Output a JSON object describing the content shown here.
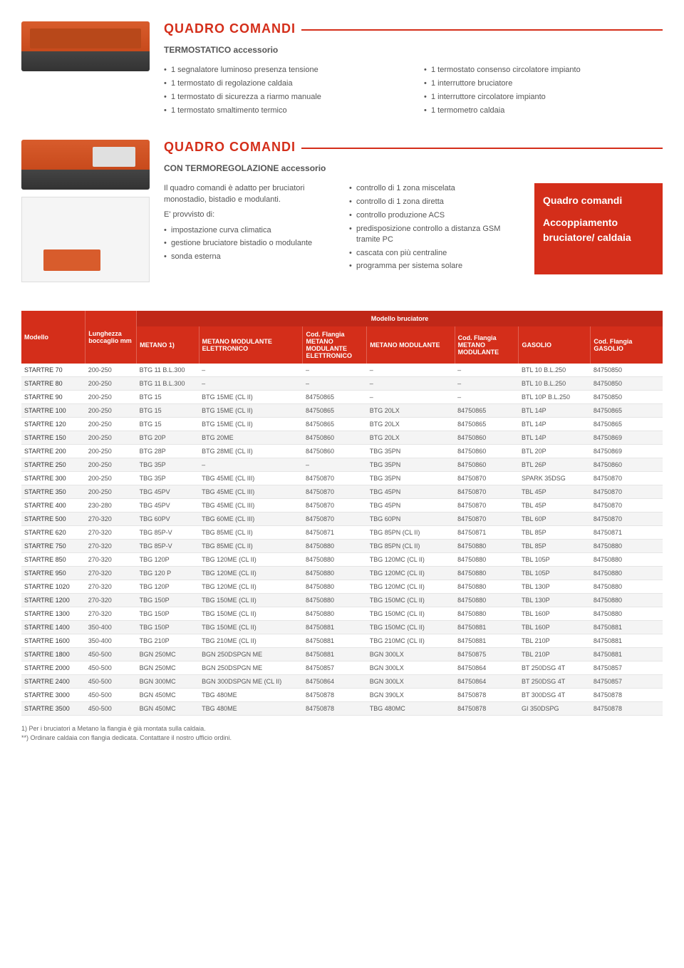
{
  "section1": {
    "title": "QUADRO COMANDI",
    "subtitle": "TERMOSTATICO accessorio",
    "left": [
      "1 segnalatore luminoso presenza tensione",
      "1 termostato di regolazione caldaia",
      "1 termostato di sicurezza a riarmo manuale",
      "1 termostato smaltimento termico"
    ],
    "right": [
      "1 termostato consenso circolatore impianto",
      "1 interruttore bruciatore",
      "1 interruttore circolatore impianto",
      "1 termometro caldaia"
    ]
  },
  "section2": {
    "title": "QUADRO COMANDI",
    "subtitle": "CON TERMOREGOLAZIONE accessorio",
    "desc1": "Il quadro comandi è adatto per bruciatori monostadio, bistadio e modulanti.",
    "desc2": "E' provvisto di:",
    "left": [
      "impostazione curva climatica",
      "gestione bruciatore bistadio o modulante",
      "sonda esterna"
    ],
    "right": [
      "controllo di 1 zona miscelata",
      "controllo di 1 zona diretta",
      "controllo produzione ACS",
      "predisposizione controllo a distanza GSM tramite PC",
      "cascata con più centraline",
      "programma per sistema solare"
    ],
    "sidebox": {
      "l1": "Quadro comandi",
      "l2": "Accoppiamento bruciatore/ caldaia"
    }
  },
  "table": {
    "group_header": "Modello bruciatore",
    "headers": [
      "Modello",
      "Lunghezza boccaglio mm",
      "METANO 1)",
      "METANO MODULANTE ELETTRONICO",
      "Cod. Flangia METANO MODULANTE ELETTRONICO",
      "METANO MODULANTE",
      "Cod. Flangia METANO MODULANTE",
      "GASOLIO",
      "Cod. Flangia GASOLIO"
    ],
    "rows": [
      [
        "STARTRE 70",
        "200-250",
        "BTG 11 B.L.300",
        "–",
        "–",
        "–",
        "–",
        "BTL 10 B.L.250",
        "84750850"
      ],
      [
        "STARTRE 80",
        "200-250",
        "BTG 11 B.L.300",
        "–",
        "–",
        "–",
        "–",
        "BTL 10 B.L.250",
        "84750850"
      ],
      [
        "STARTRE 90",
        "200-250",
        "BTG 15",
        "BTG 15ME (CL II)",
        "84750865",
        "–",
        "–",
        "BTL 10P B.L.250",
        "84750850"
      ],
      [
        "STARTRE 100",
        "200-250",
        "BTG 15",
        "BTG 15ME (CL II)",
        "84750865",
        "BTG 20LX",
        "84750865",
        "BTL 14P",
        "84750865"
      ],
      [
        "STARTRE 120",
        "200-250",
        "BTG 15",
        "BTG 15ME (CL II)",
        "84750865",
        "BTG 20LX",
        "84750865",
        "BTL 14P",
        "84750865"
      ],
      [
        "STARTRE 150",
        "200-250",
        "BTG 20P",
        "BTG 20ME",
        "84750860",
        "BTG 20LX",
        "84750860",
        "BTL 14P",
        "84750869"
      ],
      [
        "STARTRE 200",
        "200-250",
        "BTG 28P",
        "BTG 28ME (CL II)",
        "84750860",
        "TBG 35PN",
        "84750860",
        "BTL 20P",
        "84750869"
      ],
      [
        "STARTRE 250",
        "200-250",
        "TBG 35P",
        "–",
        "–",
        "TBG 35PN",
        "84750860",
        "BTL 26P",
        "84750860"
      ],
      [
        "STARTRE 300",
        "200-250",
        "TBG 35P",
        "TBG 45ME  (CL III)",
        "84750870",
        "TBG 35PN",
        "84750870",
        "SPARK 35DSG",
        "84750870"
      ],
      [
        "STARTRE 350",
        "200-250",
        "TBG 45PV",
        "TBG 45ME  (CL III)",
        "84750870",
        "TBG 45PN",
        "84750870",
        "TBL 45P",
        "84750870"
      ],
      [
        "STARTRE 400",
        "230-280",
        "TBG 45PV",
        "TBG 45ME  (CL III)",
        "84750870",
        "TBG 45PN",
        "84750870",
        "TBL 45P",
        "84750870"
      ],
      [
        "STARTRE 500",
        "270-320",
        "TBG 60PV",
        "TBG 60ME  (CL III)",
        "84750870",
        "TBG 60PN",
        "84750870",
        "TBL 60P",
        "84750870"
      ],
      [
        "STARTRE 620",
        "270-320",
        "TBG 85P-V",
        "TBG 85ME  (CL II)",
        "84750871",
        "TBG 85PN (CL II)",
        "84750871",
        "TBL 85P",
        "84750871"
      ],
      [
        "STARTRE 750",
        "270-320",
        "TBG 85P-V",
        "TBG 85ME  (CL II)",
        "84750880",
        "TBG 85PN (CL II)",
        "84750880",
        "TBL 85P",
        "84750880"
      ],
      [
        "STARTRE 850",
        "270-320",
        "TBG 120P",
        "TBG 120ME (CL II)",
        "84750880",
        "TBG 120MC  (CL II)",
        "84750880",
        "TBL 105P",
        "84750880"
      ],
      [
        "STARTRE 950",
        "270-320",
        "TBG 120 P",
        "TBG 120ME (CL II)",
        "84750880",
        "TBG 120MC  (CL II)",
        "84750880",
        "TBL 105P",
        "84750880"
      ],
      [
        "STARTRE 1020",
        "270-320",
        "TBG 120P",
        "TBG 120ME (CL II)",
        "84750880",
        "TBG 120MC  (CL II)",
        "84750880",
        "TBL 130P",
        "84750880"
      ],
      [
        "STARTRE 1200",
        "270-320",
        "TBG 150P",
        "TBG 150ME (CL II)",
        "84750880",
        "TBG 150MC  (CL II)",
        "84750880",
        "TBL 130P",
        "84750880"
      ],
      [
        "STARTRE 1300",
        "270-320",
        "TBG 150P",
        "TBG 150ME (CL II)",
        "84750880",
        "TBG 150MC  (CL II)",
        "84750880",
        "TBL 160P",
        "84750880"
      ],
      [
        "STARTRE 1400",
        "350-400",
        "TBG 150P",
        "TBG 150ME (CL II)",
        "84750881",
        "TBG 150MC  (CL II)",
        "84750881",
        "TBL 160P",
        "84750881"
      ],
      [
        "STARTRE 1600",
        "350-400",
        "TBG 210P",
        "TBG 210ME (CL II)",
        "84750881",
        "TBG 210MC  (CL II)",
        "84750881",
        "TBL 210P",
        "84750881"
      ],
      [
        "STARTRE 1800",
        "450-500",
        "BGN 250MC",
        "BGN 250DSPGN ME",
        "84750881",
        "BGN 300LX",
        "84750875",
        "TBL 210P",
        "84750881"
      ],
      [
        "STARTRE 2000",
        "450-500",
        "BGN 250MC",
        "BGN 250DSPGN ME",
        "84750857",
        "BGN 300LX",
        "84750864",
        "BT 250DSG 4T",
        "84750857"
      ],
      [
        "STARTRE 2400",
        "450-500",
        "BGN 300MC",
        "BGN 300DSPGN ME (CL II)",
        "84750864",
        "BGN 300LX",
        "84750864",
        "BT 250DSG 4T",
        "84750857"
      ],
      [
        "STARTRE 3000",
        "450-500",
        "BGN 450MC",
        "TBG 480ME",
        "84750878",
        "BGN 390LX",
        "84750878",
        "BT 300DSG 4T",
        "84750878"
      ],
      [
        "STARTRE 3500",
        "450-500",
        "BGN 450MC",
        "TBG 480ME",
        "84750878",
        "TBG 480MC",
        "84750878",
        "GI 350DSPG",
        "84750878"
      ]
    ],
    "col_widths": [
      "80px",
      "64px",
      "78px",
      "130px",
      "80px",
      "110px",
      "80px",
      "90px",
      "90px"
    ]
  },
  "footnotes": [
    "1)  Per i bruciatori a Metano la flangia è già montata sulla caldaia.",
    "**) Ordinare caldaia con flangia dedicata. Contattare il nostro ufficio ordini."
  ],
  "colors": {
    "brand": "#d42e1a",
    "text": "#555555",
    "row_alt": "#f4f4f4"
  }
}
